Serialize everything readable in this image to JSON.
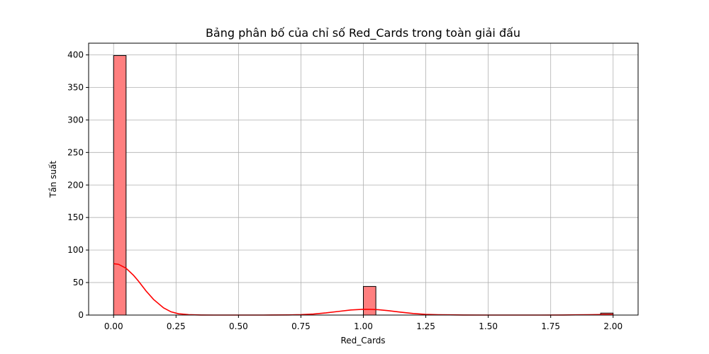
{
  "chart_data": {
    "type": "bar",
    "title": "Bảng phân bố của chỉ số Red_Cards trong toàn giải đấu",
    "xlabel": "Red_Cards",
    "ylabel": "Tần suất",
    "xlim": [
      -0.1,
      2.1
    ],
    "ylim": [
      0,
      418
    ],
    "grid": true,
    "x_ticks": [
      0.0,
      0.25,
      0.5,
      0.75,
      1.0,
      1.25,
      1.5,
      1.75,
      2.0
    ],
    "x_tick_labels": [
      "0.00",
      "0.25",
      "0.50",
      "0.75",
      "1.00",
      "1.25",
      "1.50",
      "1.75",
      "2.00"
    ],
    "y_ticks": [
      0,
      50,
      100,
      150,
      200,
      250,
      300,
      350,
      400
    ],
    "y_tick_labels": [
      "0",
      "50",
      "100",
      "150",
      "200",
      "250",
      "300",
      "350",
      "400"
    ],
    "bin_width": 0.05,
    "bars": [
      {
        "x_start": 0.0,
        "value": 399
      },
      {
        "x_start": 1.0,
        "value": 44
      },
      {
        "x_start": 1.95,
        "value": 3
      }
    ],
    "kde": {
      "x": [
        0.0,
        0.02,
        0.05,
        0.08,
        0.1,
        0.13,
        0.16,
        0.2,
        0.23,
        0.26,
        0.3,
        0.35,
        0.4,
        0.5,
        0.6,
        0.7,
        0.75,
        0.8,
        0.85,
        0.9,
        0.95,
        1.0,
        1.03,
        1.06,
        1.1,
        1.15,
        1.2,
        1.25,
        1.3,
        1.4,
        1.5,
        1.6,
        1.7,
        1.8,
        1.85,
        1.9,
        1.95,
        2.0
      ],
      "y": [
        79,
        78,
        72,
        61,
        52,
        37,
        24,
        11,
        5,
        2,
        0.6,
        0.1,
        0,
        0,
        0,
        0.2,
        0.6,
        1.6,
        3.3,
        5.6,
        7.8,
        8.9,
        8.8,
        8.2,
        6.7,
        4.4,
        2.4,
        1.1,
        0.5,
        0.1,
        0,
        0,
        0,
        0.1,
        0.3,
        0.5,
        0.7,
        0.8
      ]
    },
    "colors": {
      "bar_fill": "#ff7f7f",
      "bar_edge": "#000000",
      "kde_line": "#ff0000",
      "grid": "#b0b0b0"
    }
  }
}
